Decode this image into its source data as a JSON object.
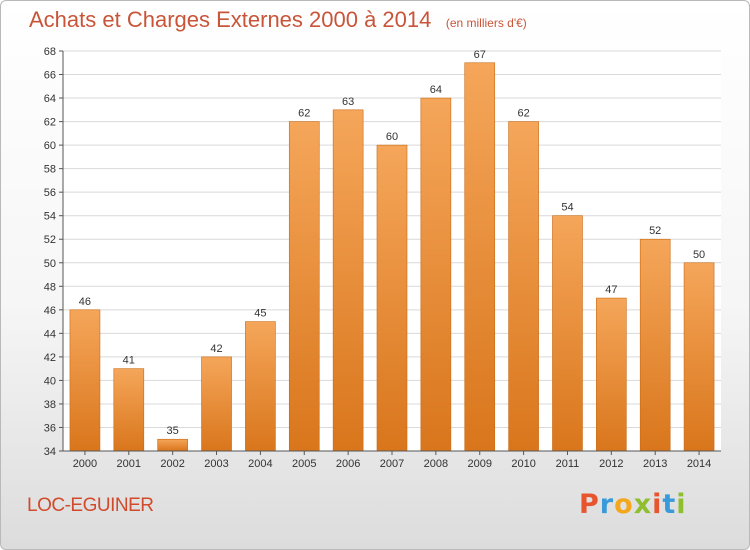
{
  "header": {
    "title": "Achats et Charges Externes 2000 à 2014",
    "unit": "(en milliers d'€)"
  },
  "footer": {
    "commune": "LOC-EGUINER",
    "logo_text": "Proxiti",
    "logo_colors": [
      "#e8542e",
      "#3a9ad9",
      "#f3a71c",
      "#8fbe2e",
      "#e8542e",
      "#3a9ad9",
      "#8fbe2e"
    ]
  },
  "colors": {
    "bar_top": "#f5a65a",
    "bar_bottom": "#d9761c",
    "bar_edge": "#c96a14",
    "title": "#c8553a",
    "grid": "#d9d9d9",
    "axis_text": "#333333"
  },
  "chart_data": {
    "type": "bar",
    "title": "Achats et Charges Externes 2000 à 2014",
    "subtitle": "(en milliers d'€)",
    "xlabel": "",
    "ylabel": "",
    "categories": [
      "2000",
      "2001",
      "2002",
      "2003",
      "2004",
      "2005",
      "2006",
      "2007",
      "2008",
      "2009",
      "2010",
      "2011",
      "2012",
      "2013",
      "2014"
    ],
    "values": [
      46,
      41,
      35,
      42,
      45,
      62,
      63,
      60,
      64,
      67,
      62,
      54,
      47,
      52,
      50
    ],
    "ylim": [
      34,
      68
    ],
    "yticks": [
      34,
      36,
      38,
      40,
      42,
      44,
      46,
      48,
      50,
      52,
      54,
      56,
      58,
      60,
      62,
      64,
      66,
      68
    ],
    "data_labels": true,
    "grid": true
  }
}
